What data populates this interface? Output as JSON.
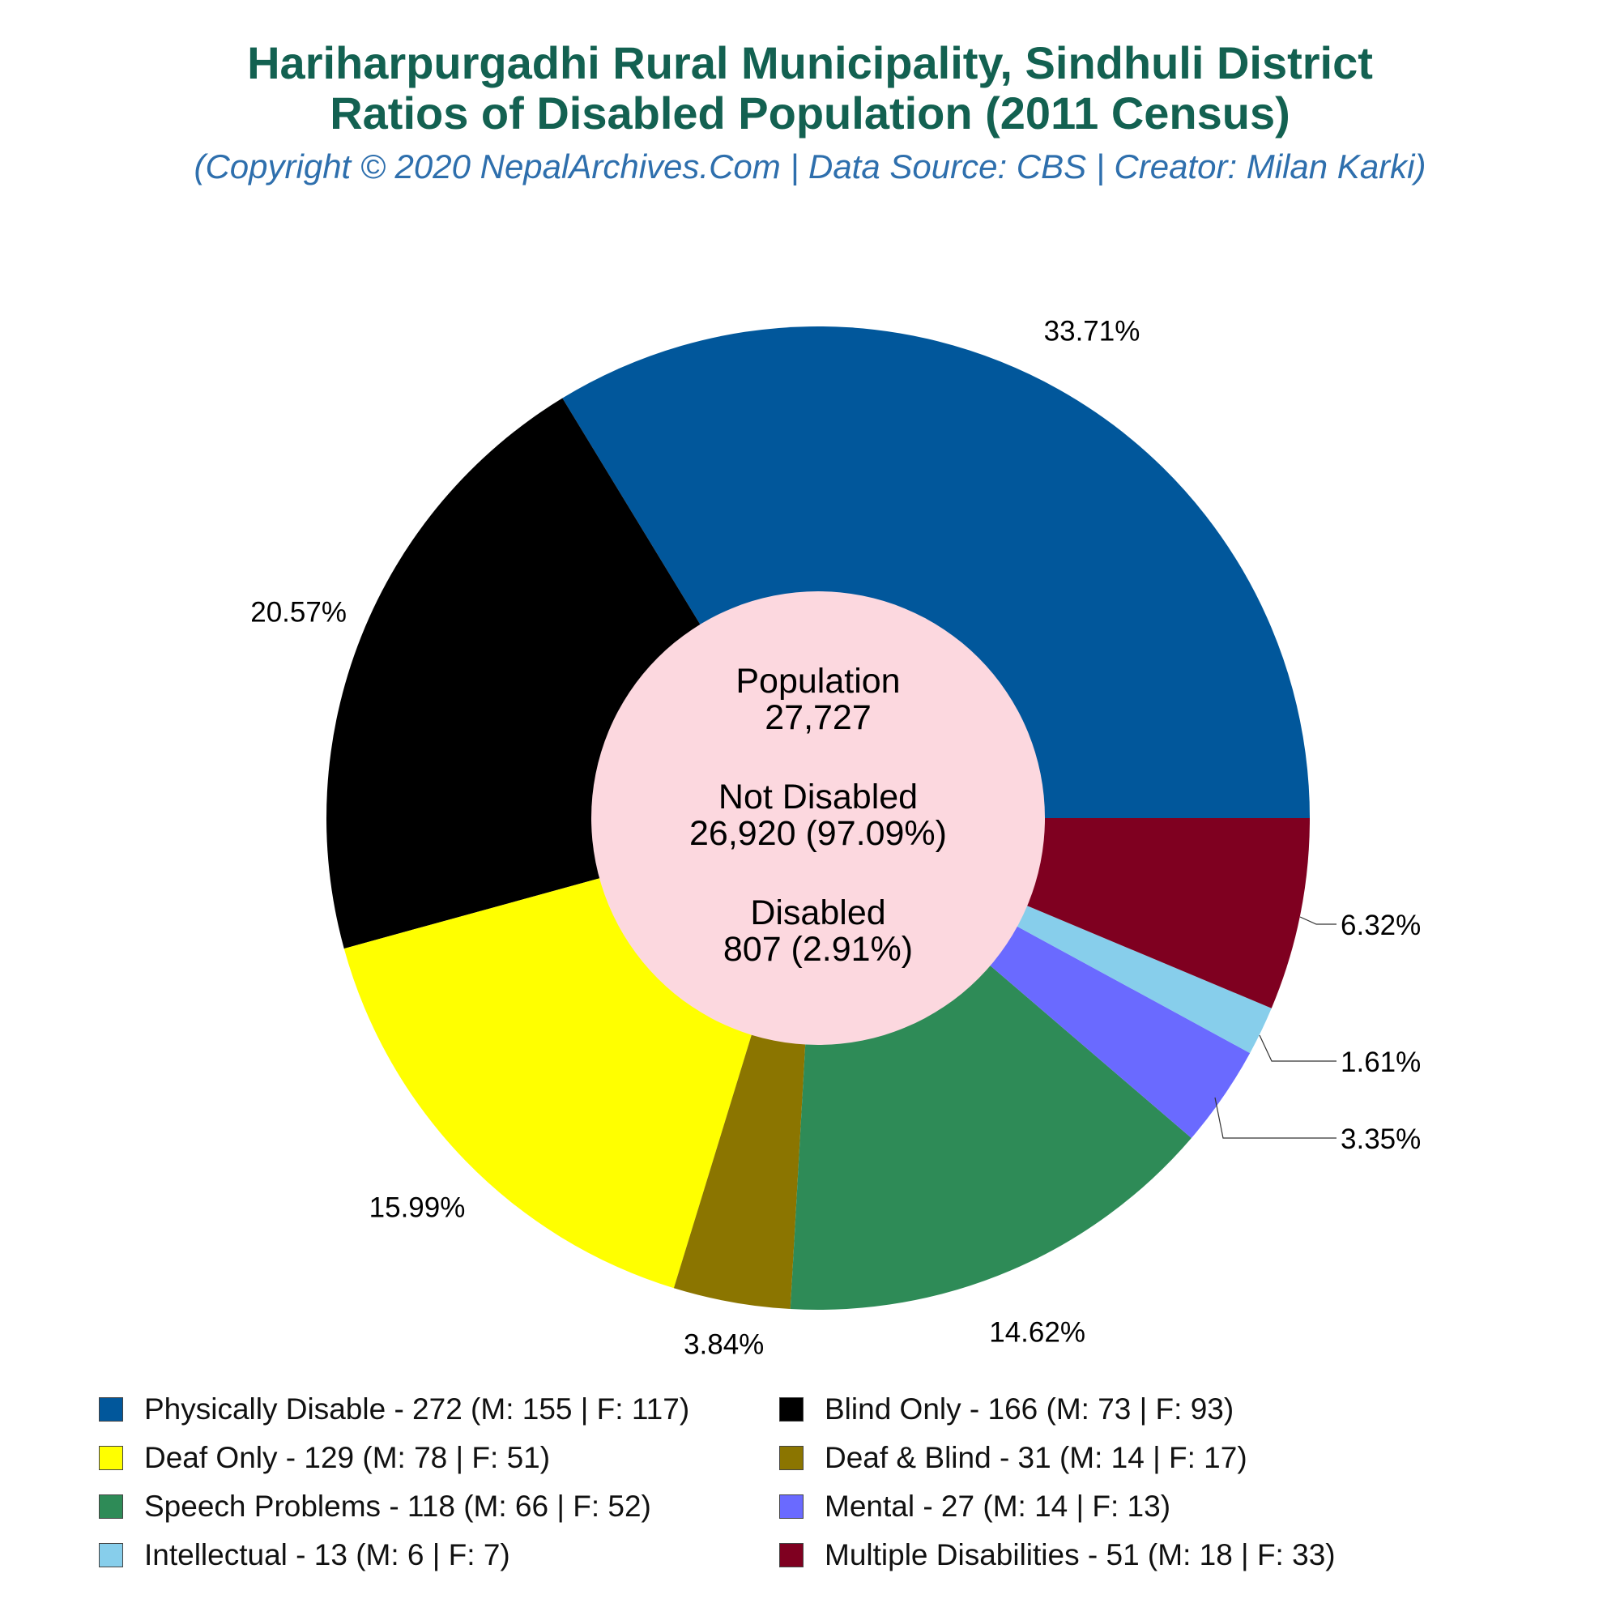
{
  "title_line1": "Hariharpurgadhi Rural Municipality, Sindhuli District",
  "title_line2": "Ratios of Disabled Population (2011 Census)",
  "subtitle": "(Copyright © 2020 NepalArchives.Com | Data Source: CBS | Creator: Milan Karki)",
  "center": {
    "population_label": "Population",
    "population_value": "27,727",
    "not_disabled_label": "Not Disabled",
    "not_disabled_value": "26,920 (97.09%)",
    "disabled_label": "Disabled",
    "disabled_value": "807 (2.91%)"
  },
  "colors": {
    "title": "#136151",
    "subtitle": "#2e6fad",
    "center_fill": "#fcd8df"
  },
  "chart_data": {
    "type": "pie",
    "start_angle_deg": 0,
    "direction": "counterclockwise",
    "hole_ratio": 0.46,
    "series": [
      {
        "name": "Physically Disable",
        "value": 272,
        "pct": "33.71%",
        "color": "#01579b",
        "legend": "Physically Disable - 272 (M: 155 | F: 117)"
      },
      {
        "name": "Blind Only",
        "value": 166,
        "pct": "20.57%",
        "color": "#000000",
        "legend": "Blind Only - 166 (M: 73 | F: 93)"
      },
      {
        "name": "Deaf Only",
        "value": 129,
        "pct": "15.99%",
        "color": "#ffff00",
        "legend": "Deaf Only - 129 (M: 78 | F: 51)"
      },
      {
        "name": "Deaf & Blind",
        "value": 31,
        "pct": "3.84%",
        "color": "#8b7500",
        "legend": "Deaf & Blind - 31 (M: 14 | F: 17)"
      },
      {
        "name": "Speech Problems",
        "value": 118,
        "pct": "14.62%",
        "color": "#2e8b57",
        "legend": "Speech Problems - 118 (M: 66 | F: 52)"
      },
      {
        "name": "Mental",
        "value": 27,
        "pct": "3.35%",
        "color": "#6a6aff",
        "legend": "Mental - 27 (M: 14 | F: 13)"
      },
      {
        "name": "Intellectual",
        "value": 13,
        "pct": "1.61%",
        "color": "#87ceeb",
        "legend": "Intellectual - 13 (M: 6 | F: 7)"
      },
      {
        "name": "Multiple Disabilities",
        "value": 51,
        "pct": "6.32%",
        "color": "#7f0020",
        "legend": "Multiple Disabilities - 51 (M: 18 | F: 33)"
      }
    ],
    "legend_order": [
      "Physically Disable",
      "Blind Only",
      "Deaf Only",
      "Deaf & Blind",
      "Speech Problems",
      "Mental",
      "Intellectual",
      "Multiple Disabilities"
    ],
    "legend_placement": "bottom"
  }
}
